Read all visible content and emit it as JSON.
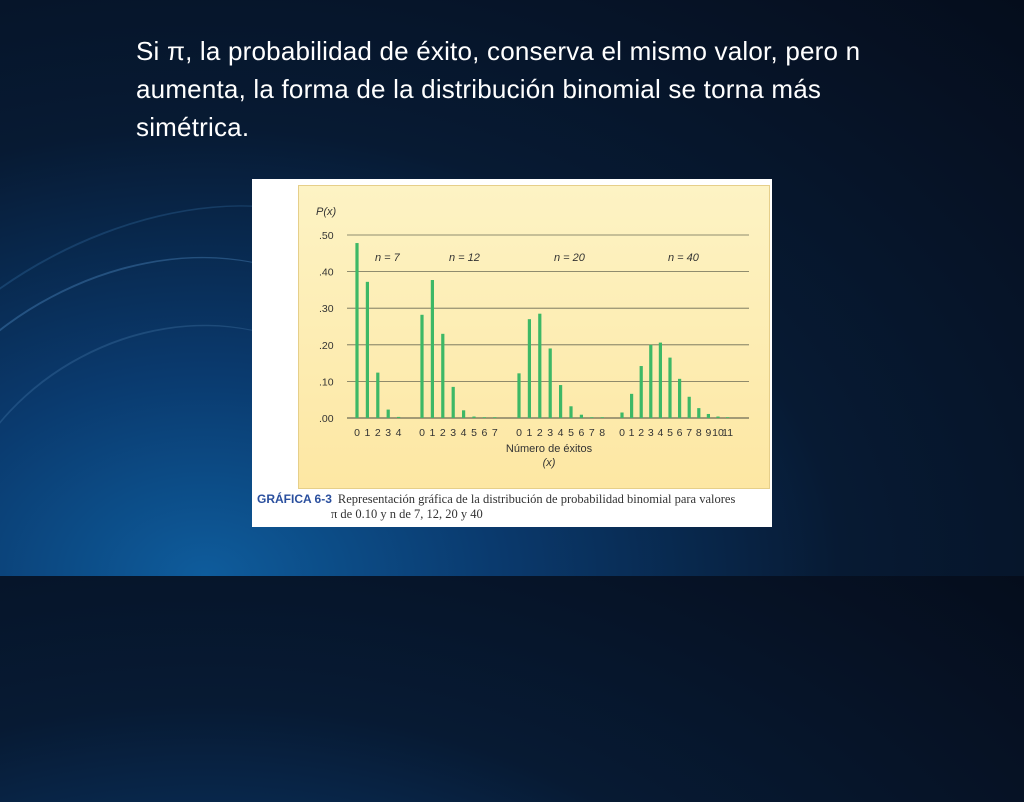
{
  "slide": {
    "title": "Si π, la probabilidad de éxito, conserva el mismo valor, pero n aumenta, la forma de la distribución binomial se torna más simétrica."
  },
  "figure": {
    "caption_id": "GRÁFICA 6-3",
    "caption_line1": "Representación gráfica de la distribución de probabilidad binomial para valores",
    "caption_line2": "π de 0.10 y n de 7, 12, 20 y 40"
  },
  "colors": {
    "bar": "#3db866",
    "grid": "#6b6b55",
    "background_top": "#fdf3c4",
    "background_bottom": "#fde7a3",
    "caption_id": "#2a4f9e"
  },
  "chart_data": {
    "type": "bar",
    "ylabel": "P(x)",
    "xlabel": "Número de éxitos",
    "xlabel_sub": "(x)",
    "ylim": [
      0,
      0.5
    ],
    "yticks": [
      ".00",
      ".10",
      ".20",
      ".30",
      ".40",
      ".50"
    ],
    "grid": true,
    "series": [
      {
        "name": "n = 7",
        "x": [
          "0",
          "1",
          "2",
          "3",
          "4"
        ],
        "values": [
          0.478,
          0.372,
          0.124,
          0.023,
          0.003
        ]
      },
      {
        "name": "n = 12",
        "x": [
          "0",
          "1",
          "2",
          "3",
          "4",
          "5",
          "6",
          "7"
        ],
        "values": [
          0.282,
          0.377,
          0.23,
          0.085,
          0.021,
          0.004,
          0.001,
          0.0
        ]
      },
      {
        "name": "n = 20",
        "x": [
          "0",
          "1",
          "2",
          "3",
          "4",
          "5",
          "6",
          "7",
          "8"
        ],
        "values": [
          0.122,
          0.27,
          0.285,
          0.19,
          0.09,
          0.032,
          0.009,
          0.002,
          0.0
        ]
      },
      {
        "name": "n = 40",
        "x": [
          "0",
          "1",
          "2",
          "3",
          "4",
          "5",
          "6",
          "7",
          "8",
          "9",
          "10",
          "11"
        ],
        "values": [
          0.015,
          0.066,
          0.142,
          0.2,
          0.206,
          0.165,
          0.107,
          0.058,
          0.027,
          0.011,
          0.004,
          0.001
        ]
      }
    ]
  }
}
